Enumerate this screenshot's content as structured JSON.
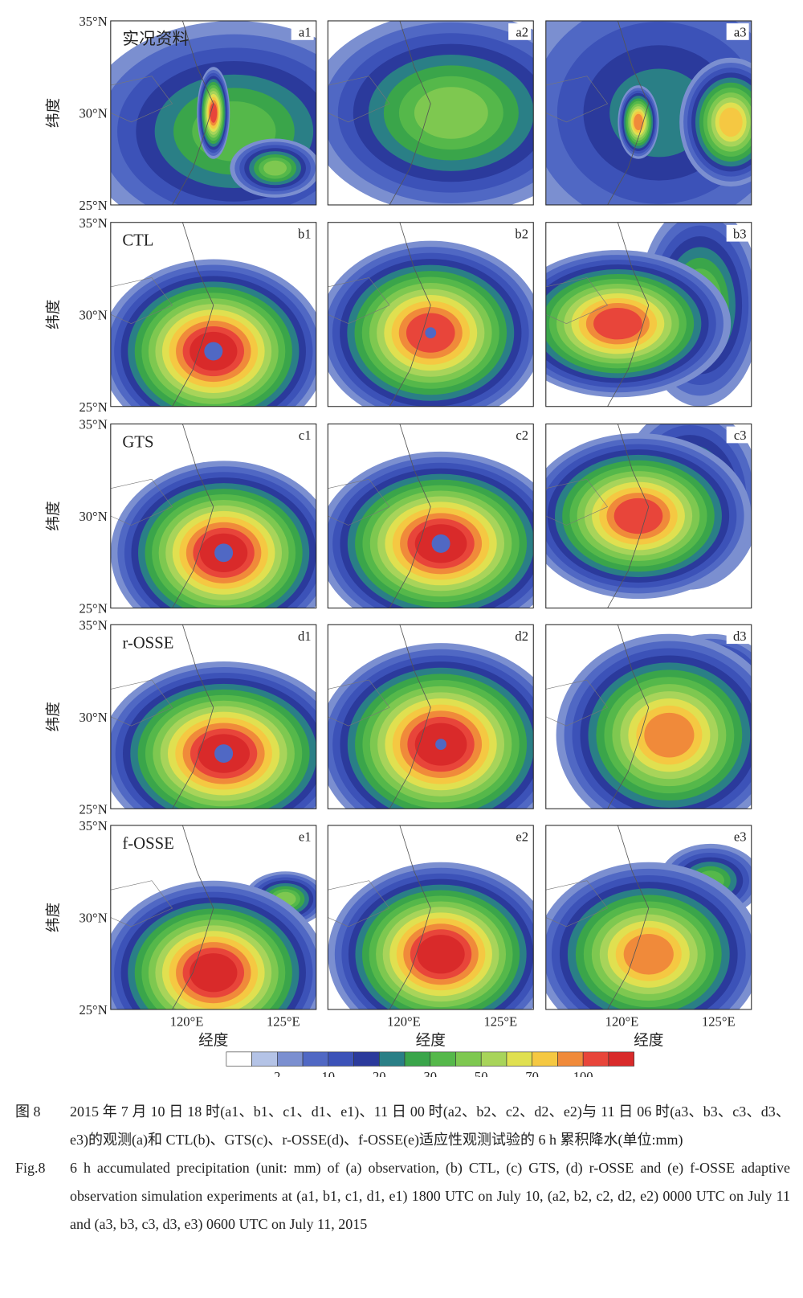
{
  "figure": {
    "rows": [
      {
        "title": "实况资料",
        "panels": [
          "a1",
          "a2",
          "a3"
        ]
      },
      {
        "title": "CTL",
        "panels": [
          "b1",
          "b2",
          "b3"
        ]
      },
      {
        "title": "GTS",
        "panels": [
          "c1",
          "c2",
          "c3"
        ]
      },
      {
        "title": "r-OSSE",
        "panels": [
          "d1",
          "d2",
          "d3"
        ]
      },
      {
        "title": "f-OSSE",
        "panels": [
          "e1",
          "e2",
          "e3"
        ]
      }
    ],
    "ylabel": "纬度",
    "xlabel": "经度",
    "lat_ticks": [
      "35°N",
      "30°N",
      "25°N"
    ],
    "lon_ticks": [
      "120°E",
      "125°E"
    ],
    "colorbar": {
      "colors": [
        "#ffffff",
        "#b4c3e6",
        "#7b8fd0",
        "#5068c4",
        "#3c52b8",
        "#2b3a9c",
        "#2a7f86",
        "#3aa54a",
        "#55b84a",
        "#7ec850",
        "#a8d45a",
        "#e0e050",
        "#f5c842",
        "#f08a3a",
        "#e8453a",
        "#d92a2a"
      ],
      "ticks": [
        2,
        10,
        20,
        30,
        50,
        70,
        100
      ]
    },
    "caption": {
      "zh": {
        "label": "图 8",
        "text": "2015 年 7 月 10 日 18 时(a1、b1、c1、d1、e1)、11 日 00 时(a2、b2、c2、d2、e2)与 11 日 06 时(a3、b3、c3、d3、e3)的观测(a)和 CTL(b)、GTS(c)、r-OSSE(d)、f-OSSE(e)适应性观测试验的 6 h 累积降水(单位:mm)"
      },
      "en": {
        "label": "Fig.8",
        "text": "6 h accumulated precipitation (unit: mm) of (a) observation, (b) CTL, (c) GTS, (d) r-OSSE and (e) f-OSSE adaptive observation simulation experiments at (a1, b1, c1, d1, e1) 1800 UTC on July 10, (a2, b2, c2, d2, e2) 0000 UTC on July 11 and (a3, b3, c3, d3, e3) 0600 UTC on July 11, 2015"
      }
    }
  }
}
